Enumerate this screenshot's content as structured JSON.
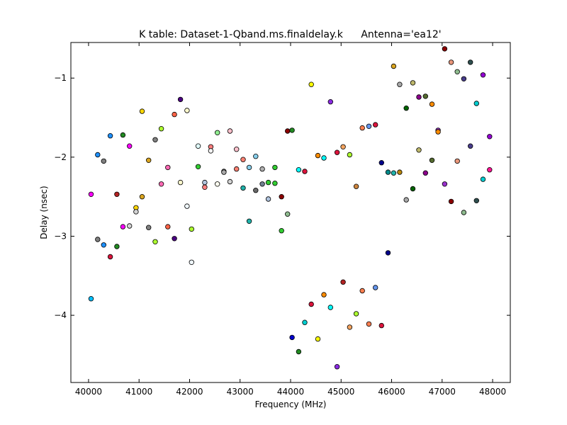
{
  "chart_data": {
    "type": "scatter",
    "title": "K table: Dataset-1-Qband.ms.finaldelay.k",
    "subtitle": "Antenna='ea12'",
    "xlabel": "Frequency (MHz)",
    "ylabel": "Delay (nsec)",
    "xlim": [
      39650,
      48350
    ],
    "ylim": [
      -4.85,
      -0.55
    ],
    "xticks": [
      40000,
      41000,
      42000,
      43000,
      44000,
      45000,
      46000,
      47000,
      48000
    ],
    "yticks": [
      -4,
      -3,
      -2,
      -1
    ],
    "xtick_labels": [
      "40000",
      "41000",
      "42000",
      "43000",
      "44000",
      "45000",
      "46000",
      "47000",
      "48000"
    ],
    "ytick_labels": [
      "−4",
      "−3",
      "−2",
      "−1"
    ],
    "grid": false,
    "legend": "none",
    "marker": "circle",
    "marker_edge_color": "#000000",
    "points": [
      {
        "x": 40050,
        "y": -2.47,
        "color": "#ff00ff"
      },
      {
        "x": 40050,
        "y": -3.79,
        "color": "#00bfff"
      },
      {
        "x": 40180,
        "y": -1.97,
        "color": "#1e90ff"
      },
      {
        "x": 40180,
        "y": -3.04,
        "color": "#808080"
      },
      {
        "x": 40300,
        "y": -2.05,
        "color": "#808080"
      },
      {
        "x": 40300,
        "y": -3.11,
        "color": "#1e90ff"
      },
      {
        "x": 40430,
        "y": -1.73,
        "color": "#1e90ff"
      },
      {
        "x": 40430,
        "y": -3.26,
        "color": "#dc143c"
      },
      {
        "x": 40560,
        "y": -2.47,
        "color": "#b22222"
      },
      {
        "x": 40560,
        "y": -3.13,
        "color": "#228b22"
      },
      {
        "x": 40680,
        "y": -1.72,
        "color": "#228b22"
      },
      {
        "x": 40680,
        "y": -2.88,
        "color": "#ff00ff"
      },
      {
        "x": 40810,
        "y": -1.86,
        "color": "#ff00ff"
      },
      {
        "x": 40810,
        "y": -2.87,
        "color": "#d3d3d3"
      },
      {
        "x": 40940,
        "y": -2.64,
        "color": "#ffd700"
      },
      {
        "x": 40940,
        "y": -2.69,
        "color": "#d3d3d3"
      },
      {
        "x": 41060,
        "y": -1.42,
        "color": "#ffd700"
      },
      {
        "x": 41060,
        "y": -2.5,
        "color": "#daa520"
      },
      {
        "x": 41190,
        "y": -2.04,
        "color": "#daa520"
      },
      {
        "x": 41190,
        "y": -2.89,
        "color": "#808080"
      },
      {
        "x": 41320,
        "y": -1.78,
        "color": "#808080"
      },
      {
        "x": 41320,
        "y": -3.07,
        "color": "#adff2f"
      },
      {
        "x": 41440,
        "y": -1.64,
        "color": "#adff2f"
      },
      {
        "x": 41440,
        "y": -2.34,
        "color": "#ff69b4"
      },
      {
        "x": 41570,
        "y": -2.13,
        "color": "#ff69b4"
      },
      {
        "x": 41570,
        "y": -2.88,
        "color": "#ff6347"
      },
      {
        "x": 41700,
        "y": -1.46,
        "color": "#ff6347"
      },
      {
        "x": 41700,
        "y": -3.03,
        "color": "#4b0082"
      },
      {
        "x": 41820,
        "y": -1.27,
        "color": "#4b0082"
      },
      {
        "x": 41820,
        "y": -2.32,
        "color": "#fffacd"
      },
      {
        "x": 41950,
        "y": -1.41,
        "color": "#fffacd"
      },
      {
        "x": 41950,
        "y": -2.62,
        "color": "#f0f8ff"
      },
      {
        "x": 42040,
        "y": -2.91,
        "color": "#adff2f"
      },
      {
        "x": 42040,
        "y": -3.33,
        "color": "#f0f8ff"
      },
      {
        "x": 42170,
        "y": -1.86,
        "color": "#e0ffff"
      },
      {
        "x": 42170,
        "y": -2.12,
        "color": "#32cd32"
      },
      {
        "x": 42300,
        "y": -2.32,
        "color": "#b0c4de"
      },
      {
        "x": 42300,
        "y": -2.38,
        "color": "#ff7f7f"
      },
      {
        "x": 42420,
        "y": -1.87,
        "color": "#ff7f7f"
      },
      {
        "x": 42420,
        "y": -1.92,
        "color": "#f5f5f5"
      },
      {
        "x": 42550,
        "y": -1.69,
        "color": "#90ee90"
      },
      {
        "x": 42550,
        "y": -2.34,
        "color": "#fffff0"
      },
      {
        "x": 42680,
        "y": -2.18,
        "color": "#ffffff"
      },
      {
        "x": 42680,
        "y": -2.19,
        "color": "#a9a9a9"
      },
      {
        "x": 42800,
        "y": -1.67,
        "color": "#ffc0cb"
      },
      {
        "x": 42800,
        "y": -2.31,
        "color": "#d3d3d3"
      },
      {
        "x": 42930,
        "y": -1.9,
        "color": "#ffc0cb"
      },
      {
        "x": 42930,
        "y": -2.15,
        "color": "#fa8072"
      },
      {
        "x": 43060,
        "y": -2.03,
        "color": "#fa8072"
      },
      {
        "x": 43060,
        "y": -2.39,
        "color": "#20b2aa"
      },
      {
        "x": 43180,
        "y": -2.13,
        "color": "#87ceeb"
      },
      {
        "x": 43180,
        "y": -2.81,
        "color": "#20b2aa"
      },
      {
        "x": 43310,
        "y": -1.99,
        "color": "#87ceeb"
      },
      {
        "x": 43310,
        "y": -2.42,
        "color": "#696969"
      },
      {
        "x": 43440,
        "y": -2.15,
        "color": "#b0b0b0"
      },
      {
        "x": 43440,
        "y": -2.34,
        "color": "#708090"
      },
      {
        "x": 43560,
        "y": -2.32,
        "color": "#32cd32"
      },
      {
        "x": 43560,
        "y": -2.53,
        "color": "#b0c4de"
      },
      {
        "x": 43690,
        "y": -2.13,
        "color": "#32cd32"
      },
      {
        "x": 43690,
        "y": -2.33,
        "color": "#32cd32"
      },
      {
        "x": 43820,
        "y": -2.5,
        "color": "#8b0000"
      },
      {
        "x": 43820,
        "y": -2.93,
        "color": "#32cd32"
      },
      {
        "x": 43940,
        "y": -1.67,
        "color": "#8b0000"
      },
      {
        "x": 43940,
        "y": -2.72,
        "color": "#8fbc8f"
      },
      {
        "x": 44030,
        "y": -1.66,
        "color": "#228b22"
      },
      {
        "x": 44030,
        "y": -4.28,
        "color": "#0000cd"
      },
      {
        "x": 44160,
        "y": -2.16,
        "color": "#00ffff"
      },
      {
        "x": 44160,
        "y": -4.46,
        "color": "#228b22"
      },
      {
        "x": 44280,
        "y": -2.18,
        "color": "#dc143c"
      },
      {
        "x": 44280,
        "y": -4.09,
        "color": "#00ced1"
      },
      {
        "x": 44410,
        "y": -1.08,
        "color": "#ffff00"
      },
      {
        "x": 44410,
        "y": -3.86,
        "color": "#dc143c"
      },
      {
        "x": 44540,
        "y": -1.98,
        "color": "#ff8c00"
      },
      {
        "x": 44540,
        "y": -4.3,
        "color": "#ffff00"
      },
      {
        "x": 44660,
        "y": -2.01,
        "color": "#00ffff"
      },
      {
        "x": 44660,
        "y": -3.74,
        "color": "#ff8c00"
      },
      {
        "x": 44790,
        "y": -1.3,
        "color": "#8a2be2"
      },
      {
        "x": 44790,
        "y": -3.9,
        "color": "#00ffff"
      },
      {
        "x": 44920,
        "y": -1.94,
        "color": "#dc143c"
      },
      {
        "x": 44920,
        "y": -4.65,
        "color": "#8a2be2"
      },
      {
        "x": 45040,
        "y": -1.87,
        "color": "#f4a460"
      },
      {
        "x": 45040,
        "y": -3.58,
        "color": "#b22222"
      },
      {
        "x": 45170,
        "y": -1.97,
        "color": "#adff2f"
      },
      {
        "x": 45170,
        "y": -4.15,
        "color": "#f4a460"
      },
      {
        "x": 45300,
        "y": -2.37,
        "color": "#cd853f"
      },
      {
        "x": 45300,
        "y": -3.98,
        "color": "#adff2f"
      },
      {
        "x": 45420,
        "y": -1.63,
        "color": "#ff7f50"
      },
      {
        "x": 45420,
        "y": -3.69,
        "color": "#ff7f50"
      },
      {
        "x": 45550,
        "y": -1.61,
        "color": "#6495ed"
      },
      {
        "x": 45550,
        "y": -4.11,
        "color": "#ff7f50"
      },
      {
        "x": 45680,
        "y": -1.59,
        "color": "#dc143c"
      },
      {
        "x": 45680,
        "y": -3.65,
        "color": "#6495ed"
      },
      {
        "x": 45800,
        "y": -2.07,
        "color": "#00008b"
      },
      {
        "x": 45800,
        "y": -4.13,
        "color": "#dc143c"
      },
      {
        "x": 45930,
        "y": -2.19,
        "color": "#008b8b"
      },
      {
        "x": 45930,
        "y": -3.21,
        "color": "#00008b"
      },
      {
        "x": 46040,
        "y": -0.85,
        "color": "#daa520"
      },
      {
        "x": 46040,
        "y": -2.2,
        "color": "#20b2aa"
      },
      {
        "x": 46160,
        "y": -1.08,
        "color": "#a9a9a9"
      },
      {
        "x": 46160,
        "y": -2.19,
        "color": "#b8860b"
      },
      {
        "x": 46290,
        "y": -1.38,
        "color": "#006400"
      },
      {
        "x": 46290,
        "y": -2.54,
        "color": "#a9a9a9"
      },
      {
        "x": 46420,
        "y": -1.06,
        "color": "#bdb76b"
      },
      {
        "x": 46420,
        "y": -2.4,
        "color": "#006400"
      },
      {
        "x": 46540,
        "y": -1.24,
        "color": "#8b008b"
      },
      {
        "x": 46540,
        "y": -1.91,
        "color": "#bdb76b"
      },
      {
        "x": 46670,
        "y": -1.23,
        "color": "#556b2f"
      },
      {
        "x": 46670,
        "y": -2.2,
        "color": "#8b008b"
      },
      {
        "x": 46800,
        "y": -1.33,
        "color": "#ff8c00"
      },
      {
        "x": 46800,
        "y": -2.04,
        "color": "#556b2f"
      },
      {
        "x": 46920,
        "y": -1.66,
        "color": "#9932cc"
      },
      {
        "x": 46920,
        "y": -1.68,
        "color": "#ff8c00"
      },
      {
        "x": 47050,
        "y": -0.63,
        "color": "#8b0000"
      },
      {
        "x": 47050,
        "y": -2.34,
        "color": "#9932cc"
      },
      {
        "x": 47180,
        "y": -0.8,
        "color": "#e9967a"
      },
      {
        "x": 47180,
        "y": -2.56,
        "color": "#8b0000"
      },
      {
        "x": 47300,
        "y": -0.92,
        "color": "#8fbc8f"
      },
      {
        "x": 47300,
        "y": -2.05,
        "color": "#e9967a"
      },
      {
        "x": 47430,
        "y": -1.01,
        "color": "#483d8b"
      },
      {
        "x": 47430,
        "y": -2.7,
        "color": "#8fbc8f"
      },
      {
        "x": 47560,
        "y": -0.8,
        "color": "#2f4f4f"
      },
      {
        "x": 47560,
        "y": -1.86,
        "color": "#483d8b"
      },
      {
        "x": 47680,
        "y": -1.32,
        "color": "#00ced1"
      },
      {
        "x": 47680,
        "y": -2.55,
        "color": "#2f4f4f"
      },
      {
        "x": 47810,
        "y": -0.96,
        "color": "#9400d3"
      },
      {
        "x": 47810,
        "y": -2.28,
        "color": "#00ced1"
      },
      {
        "x": 47940,
        "y": -1.74,
        "color": "#9400d3"
      },
      {
        "x": 47940,
        "y": -2.16,
        "color": "#ff1493"
      }
    ]
  }
}
